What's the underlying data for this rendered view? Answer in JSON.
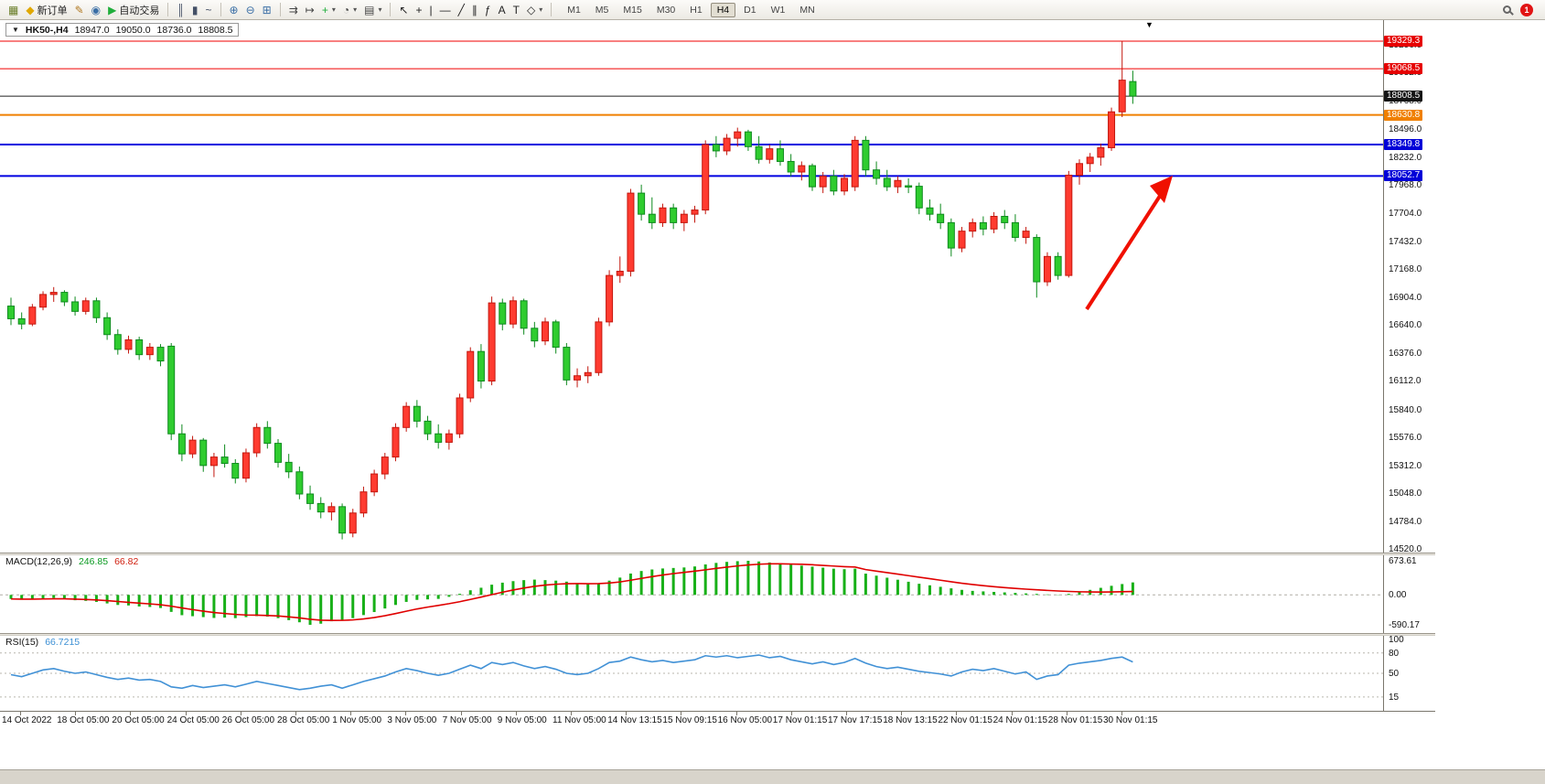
{
  "toolbar": {
    "groups": [
      [
        {
          "name": "new-chart",
          "glyph": "▦",
          "color": "#6b7f2a"
        },
        {
          "name": "new-order",
          "glyph": "◆",
          "color": "#e0a800",
          "label": "新订单"
        },
        {
          "name": "metaeditor",
          "glyph": "✎",
          "color": "#b07820"
        },
        {
          "name": "market-watch",
          "glyph": "◉",
          "color": "#3a6ea5"
        },
        {
          "name": "autotrading",
          "glyph": "▶",
          "color": "#1fae3a",
          "label": "自动交易"
        }
      ],
      [
        {
          "name": "bar-chart-mode",
          "glyph": "║",
          "color": "#445066"
        },
        {
          "name": "candlestick-mode",
          "glyph": "▮",
          "color": "#445066"
        },
        {
          "name": "line-chart-mode",
          "glyph": "~",
          "color": "#445066"
        }
      ],
      [
        {
          "name": "zoom-in",
          "glyph": "⊕",
          "color": "#3a6ea5"
        },
        {
          "name": "zoom-out",
          "glyph": "⊖",
          "color": "#3a6ea5"
        },
        {
          "name": "tile-windows",
          "glyph": "⊞",
          "color": "#3a6ea5"
        }
      ],
      [
        {
          "name": "auto-scroll",
          "glyph": "⇉",
          "color": "#444444"
        },
        {
          "name": "chart-shift",
          "glyph": "↦",
          "color": "#444444"
        },
        {
          "name": "indicators-list",
          "glyph": "+",
          "color": "#1fae3a",
          "dropdown": true
        },
        {
          "name": "periods",
          "glyph": "◔",
          "color": "#444444",
          "dropdown": true
        },
        {
          "name": "templates",
          "glyph": "▤",
          "color": "#444444",
          "dropdown": true
        }
      ],
      [
        {
          "name": "cursor",
          "glyph": "↖",
          "color": "#222222"
        },
        {
          "name": "crosshair",
          "glyph": "+",
          "color": "#222222"
        },
        {
          "name": "vertical-line",
          "glyph": "|",
          "color": "#222222"
        },
        {
          "name": "horizontal-line",
          "glyph": "—",
          "color": "#222222"
        },
        {
          "name": "trendline",
          "glyph": "╱",
          "color": "#222222"
        },
        {
          "name": "equidistant-channel",
          "glyph": "∥",
          "color": "#222222"
        },
        {
          "name": "fibonacci",
          "glyph": "ƒ",
          "color": "#222222"
        },
        {
          "name": "text",
          "glyph": "A",
          "color": "#222222"
        },
        {
          "name": "text-label",
          "glyph": "T",
          "color": "#222222"
        },
        {
          "name": "arrows-tool",
          "glyph": "◇",
          "color": "#222222",
          "dropdown": true
        }
      ]
    ],
    "timeframes": [
      "M1",
      "M5",
      "M15",
      "M30",
      "H1",
      "H4",
      "D1",
      "W1",
      "MN"
    ],
    "active_timeframe": "H4",
    "notification_count": "1"
  },
  "chart_header": {
    "collapse_glyph": "▼",
    "marker_glyph": "▼",
    "symbol": "HK50-,H4",
    "open": "18947.0",
    "high": "19050.0",
    "low": "18736.0",
    "close": "18808.5"
  },
  "price_axis": {
    "labels": [
      "19296.0",
      "19032.0",
      "18768.0",
      "18496.0",
      "18232.0",
      "17968.0",
      "17704.0",
      "17432.0",
      "17168.0",
      "16904.0",
      "16640.0",
      "16376.0",
      "16112.0",
      "15840.0",
      "15576.0",
      "15312.0",
      "15048.0",
      "14784.0",
      "14520.0"
    ],
    "badges": [
      {
        "value": "19329.3",
        "color": "#e60000",
        "line_color": "#f00000",
        "line_width": 1
      },
      {
        "value": "19068.5",
        "color": "#e60000",
        "line_color": "#f00000",
        "line_width": 1
      },
      {
        "value": "18808.5",
        "color": "#151515",
        "line_color": "#222222",
        "line_width": 1
      },
      {
        "value": "18630.8",
        "color": "#f08000",
        "line_color": "#f08000",
        "line_width": 2
      },
      {
        "value": "18349.8",
        "color": "#0000d8",
        "line_color": "#0000e0",
        "line_width": 2
      },
      {
        "value": "18052.7",
        "color": "#0000d8",
        "line_color": "#0000e0",
        "line_width": 2
      }
    ]
  },
  "time_axis": [
    "14 Oct 2022",
    "18 Oct 05:00",
    "20 Oct 05:00",
    "24 Oct 05:00",
    "26 Oct 05:00",
    "28 Oct 05:00",
    "1 Nov 05:00",
    "3 Nov 05:00",
    "7 Nov 05:00",
    "9 Nov 05:00",
    "11 Nov 05:00",
    "14 Nov 13:15",
    "15 Nov 09:15",
    "16 Nov 05:00",
    "17 Nov 01:15",
    "17 Nov 17:15",
    "18 Nov 13:15",
    "22 Nov 01:15",
    "24 Nov 01:15",
    "28 Nov 01:15",
    "30 Nov 01:15"
  ],
  "indicators": {
    "macd": {
      "label": "MACD(12,26,9)",
      "main_value": "246.85",
      "signal_value": "66.82",
      "scale": [
        "673.61",
        "0.00",
        "-590.17"
      ]
    },
    "rsi": {
      "label": "RSI(15)",
      "value": "66.7215",
      "scale": [
        "100",
        "80",
        "50",
        "15"
      ]
    }
  },
  "chart_data": {
    "type": "candlestick",
    "symbol": "HK50",
    "timeframe": "H4",
    "color_convention": "red = bullish (up), green = bearish (down)",
    "price_axis_min": 14520,
    "price_axis_max": 19296,
    "colors": {
      "up": "#ff3b30",
      "up_border": "#c3170e",
      "down": "#2fcc2f",
      "down_border": "#0e8a1e",
      "macd_hist": "#18b018",
      "macd_signal": "#e00000",
      "rsi_line": "#4191d6",
      "arrow": "#f01000"
    },
    "hlines": [
      19329.3,
      19068.5,
      18808.5,
      18630.8,
      18349.8,
      18052.7
    ],
    "candles": [
      [
        16820,
        16900,
        16640,
        16700
      ],
      [
        16700,
        16760,
        16600,
        16650
      ],
      [
        16650,
        16840,
        16630,
        16810
      ],
      [
        16810,
        16960,
        16780,
        16930
      ],
      [
        16930,
        17000,
        16860,
        16950
      ],
      [
        16950,
        16970,
        16820,
        16860
      ],
      [
        16860,
        16910,
        16730,
        16770
      ],
      [
        16770,
        16900,
        16740,
        16870
      ],
      [
        16870,
        16900,
        16660,
        16710
      ],
      [
        16710,
        16760,
        16500,
        16550
      ],
      [
        16550,
        16600,
        16360,
        16410
      ],
      [
        16410,
        16540,
        16370,
        16500
      ],
      [
        16500,
        16530,
        16310,
        16360
      ],
      [
        16360,
        16470,
        16310,
        16430
      ],
      [
        16430,
        16460,
        16250,
        16300
      ],
      [
        16440,
        16470,
        15550,
        15610
      ],
      [
        15610,
        15700,
        15350,
        15420
      ],
      [
        15420,
        15590,
        15380,
        15550
      ],
      [
        15550,
        15570,
        15250,
        15310
      ],
      [
        15310,
        15430,
        15200,
        15390
      ],
      [
        15390,
        15510,
        15290,
        15330
      ],
      [
        15330,
        15370,
        15140,
        15190
      ],
      [
        15190,
        15470,
        15150,
        15430
      ],
      [
        15430,
        15710,
        15390,
        15670
      ],
      [
        15670,
        15730,
        15470,
        15520
      ],
      [
        15520,
        15560,
        15290,
        15340
      ],
      [
        15340,
        15420,
        15190,
        15250
      ],
      [
        15250,
        15300,
        14990,
        15040
      ],
      [
        15040,
        15120,
        14890,
        14950
      ],
      [
        14950,
        15010,
        14810,
        14870
      ],
      [
        14870,
        14960,
        14790,
        14920
      ],
      [
        14920,
        14950,
        14610,
        14670
      ],
      [
        14670,
        14900,
        14630,
        14860
      ],
      [
        14860,
        15110,
        14820,
        15060
      ],
      [
        15060,
        15270,
        15020,
        15230
      ],
      [
        15230,
        15430,
        15180,
        15390
      ],
      [
        15390,
        15710,
        15350,
        15670
      ],
      [
        15670,
        15910,
        15630,
        15870
      ],
      [
        15870,
        15930,
        15670,
        15730
      ],
      [
        15730,
        15780,
        15550,
        15610
      ],
      [
        15610,
        15700,
        15470,
        15530
      ],
      [
        15530,
        15650,
        15460,
        15610
      ],
      [
        15610,
        15990,
        15570,
        15950
      ],
      [
        15950,
        16430,
        15910,
        16390
      ],
      [
        16390,
        16460,
        16040,
        16110
      ],
      [
        16110,
        16910,
        16070,
        16850
      ],
      [
        16850,
        16890,
        16590,
        16650
      ],
      [
        16650,
        16910,
        16610,
        16870
      ],
      [
        16870,
        16890,
        16550,
        16610
      ],
      [
        16610,
        16670,
        16430,
        16490
      ],
      [
        16490,
        16710,
        16450,
        16670
      ],
      [
        16670,
        16690,
        16370,
        16430
      ],
      [
        16430,
        16470,
        16070,
        16120
      ],
      [
        16120,
        16230,
        16050,
        16160
      ],
      [
        16160,
        16250,
        16090,
        16190
      ],
      [
        16190,
        16710,
        16160,
        16670
      ],
      [
        16670,
        17160,
        16630,
        17110
      ],
      [
        17110,
        17290,
        17040,
        17150
      ],
      [
        17150,
        17930,
        17100,
        17890
      ],
      [
        17890,
        17970,
        17630,
        17690
      ],
      [
        17690,
        17850,
        17550,
        17610
      ],
      [
        17610,
        17790,
        17570,
        17750
      ],
      [
        17750,
        17790,
        17550,
        17610
      ],
      [
        17610,
        17730,
        17530,
        17690
      ],
      [
        17690,
        17770,
        17610,
        17730
      ],
      [
        17730,
        18390,
        17690,
        18350
      ],
      [
        18350,
        18430,
        18230,
        18290
      ],
      [
        18290,
        18450,
        18250,
        18410
      ],
      [
        18410,
        18510,
        18330,
        18470
      ],
      [
        18470,
        18490,
        18290,
        18330
      ],
      [
        18330,
        18430,
        18170,
        18210
      ],
      [
        18210,
        18350,
        18170,
        18310
      ],
      [
        18310,
        18390,
        18150,
        18190
      ],
      [
        18190,
        18260,
        18050,
        18090
      ],
      [
        18090,
        18190,
        18010,
        18150
      ],
      [
        18150,
        18170,
        17910,
        17950
      ],
      [
        17950,
        18090,
        17890,
        18050
      ],
      [
        18050,
        18110,
        17870,
        17910
      ],
      [
        17910,
        18070,
        17870,
        18030
      ],
      [
        17950,
        18430,
        17910,
        18390
      ],
      [
        18390,
        18430,
        18050,
        18110
      ],
      [
        18110,
        18190,
        17970,
        18030
      ],
      [
        18030,
        18110,
        17910,
        17950
      ],
      [
        17950,
        18050,
        17890,
        18010
      ],
      [
        17960,
        18030,
        17890,
        17955
      ],
      [
        17955,
        17990,
        17690,
        17750
      ],
      [
        17750,
        17830,
        17630,
        17690
      ],
      [
        17690,
        17790,
        17550,
        17610
      ],
      [
        17610,
        17650,
        17290,
        17370
      ],
      [
        17370,
        17570,
        17330,
        17530
      ],
      [
        17530,
        17650,
        17470,
        17610
      ],
      [
        17610,
        17670,
        17490,
        17550
      ],
      [
        17550,
        17710,
        17510,
        17670
      ],
      [
        17670,
        17730,
        17550,
        17610
      ],
      [
        17610,
        17690,
        17430,
        17470
      ],
      [
        17470,
        17570,
        17410,
        17530
      ],
      [
        17470,
        17500,
        16900,
        17050
      ],
      [
        17050,
        17330,
        17010,
        17290
      ],
      [
        17290,
        17330,
        17070,
        17110
      ],
      [
        17110,
        18100,
        17090,
        18060
      ],
      [
        18060,
        18210,
        17970,
        18170
      ],
      [
        18170,
        18270,
        18090,
        18230
      ],
      [
        18230,
        18360,
        18150,
        18320
      ],
      [
        18320,
        18700,
        18290,
        18660
      ],
      [
        18660,
        19329,
        18610,
        18960
      ],
      [
        18947,
        19050,
        18736,
        18808.5
      ]
    ],
    "macd_scale": {
      "max": 673.61,
      "min": -590.17
    },
    "macd_hist": [
      -80,
      -95,
      -85,
      -70,
      -62,
      -78,
      -105,
      -118,
      -138,
      -168,
      -198,
      -208,
      -228,
      -238,
      -258,
      -335,
      -400,
      -420,
      -438,
      -455,
      -448,
      -458,
      -438,
      -418,
      -428,
      -458,
      -498,
      -540,
      -590.17,
      -568,
      -520,
      -498,
      -458,
      -398,
      -338,
      -268,
      -198,
      -138,
      -98,
      -88,
      -78,
      -38,
      22,
      92,
      142,
      202,
      242,
      272,
      292,
      302,
      292,
      282,
      262,
      232,
      212,
      232,
      282,
      342,
      422,
      472,
      502,
      522,
      532,
      542,
      562,
      602,
      632,
      652,
      666,
      673.61,
      660,
      640,
      618,
      598,
      578,
      558,
      538,
      518,
      508,
      518,
      420,
      380,
      340,
      300,
      260,
      220,
      190,
      160,
      130,
      100,
      80,
      70,
      60,
      50,
      40,
      30,
      20,
      10,
      5,
      20,
      60,
      100,
      140,
      180,
      215,
      246.85
    ],
    "macd_signal": [
      -80,
      -83,
      -83,
      -80,
      -77,
      -77,
      -83,
      -90,
      -99,
      -113,
      -130,
      -146,
      -162,
      -177,
      -194,
      -222,
      -257,
      -290,
      -320,
      -347,
      -367,
      -385,
      -396,
      -400,
      -406,
      -416,
      -433,
      -454,
      -481,
      -499,
      -503,
      -502,
      -493,
      -474,
      -447,
      -411,
      -368,
      -322,
      -277,
      -240,
      -207,
      -173,
      -134,
      -89,
      -43,
      6,
      53,
      97,
      136,
      169,
      194,
      211,
      222,
      224,
      221,
      223,
      235,
      256,
      290,
      326,
      361,
      393,
      421,
      445,
      469,
      495,
      523,
      548,
      572,
      592,
      606,
      613,
      614,
      610,
      604,
      595,
      583,
      570,
      558,
      550,
      500,
      470,
      440,
      410,
      380,
      350,
      320,
      290,
      260,
      230,
      205,
      182,
      162,
      144,
      128,
      114,
      101,
      89,
      78,
      69,
      62,
      58,
      57,
      59,
      63,
      66.82
    ],
    "rsi_levels": [
      80,
      50,
      15
    ],
    "rsi": [
      48,
      45,
      50,
      55,
      57,
      53,
      50,
      52,
      48,
      44,
      41,
      43,
      40,
      41,
      38,
      30,
      28,
      32,
      29,
      31,
      33,
      30,
      34,
      38,
      35,
      32,
      29,
      26,
      28,
      31,
      33,
      28,
      33,
      38,
      42,
      46,
      52,
      57,
      54,
      50,
      47,
      50,
      56,
      62,
      57,
      66,
      63,
      66,
      61,
      57,
      60,
      56,
      50,
      48,
      50,
      57,
      66,
      68,
      74,
      70,
      67,
      69,
      66,
      68,
      70,
      76,
      74,
      76,
      73,
      75,
      77,
      73,
      75,
      70,
      67,
      64,
      67,
      63,
      66,
      72,
      65,
      60,
      57,
      59,
      56,
      53,
      51,
      49,
      46,
      52,
      56,
      54,
      57,
      53,
      49,
      52,
      41,
      46,
      48,
      62,
      65,
      67,
      69,
      72,
      74,
      66.72
    ]
  }
}
